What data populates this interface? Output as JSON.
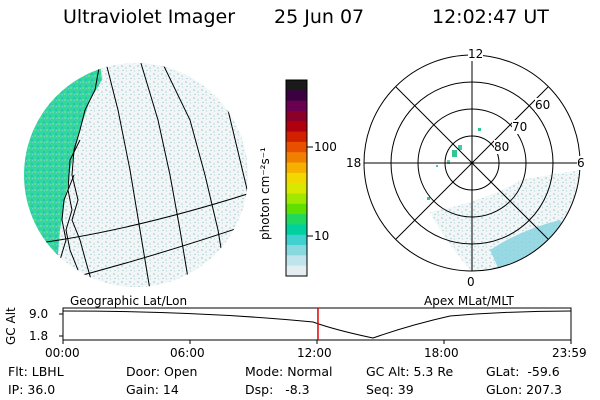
{
  "header": {
    "instrument": "Ultraviolet Imager",
    "date": "25 Jun 07",
    "time": "12:02:47 UT"
  },
  "colorbar": {
    "unit_label": "photon cm⁻²s⁻¹",
    "ticks": [
      "100",
      "10"
    ],
    "colors": [
      "#1a1a1a",
      "#3a0040",
      "#6a0050",
      "#8a0028",
      "#b00010",
      "#d02000",
      "#e85000",
      "#f08000",
      "#f8b000",
      "#f0d800",
      "#d8e800",
      "#a0e800",
      "#60e000",
      "#20d860",
      "#00d0a0",
      "#40d0d0",
      "#88d8e0",
      "#c0e4ec",
      "#e4eef0"
    ]
  },
  "left_panel": {
    "label": "Geographic Lat/Lon"
  },
  "right_panel": {
    "label": "Apex MLat/MLT",
    "mlt_labels": {
      "top": "12",
      "left": "18",
      "right": "6",
      "bottom": "0"
    },
    "lat_labels": [
      "80",
      "70",
      "60"
    ]
  },
  "timeline": {
    "axis_label": "GC Alt",
    "y_ticks": [
      "9.0",
      "1.8"
    ],
    "x_ticks": [
      "00:00",
      "06:00",
      "12:00",
      "18:00",
      "23:59"
    ],
    "current_time_fraction": 0.5019,
    "marker_color": "#e00000"
  },
  "info": {
    "filter": "Flt: LBHL",
    "ip": "IP: 36.0",
    "door": "Door: Open",
    "gain": "Gain: 14",
    "mode": "Mode: Normal",
    "dsp": "Dsp:   -8.3",
    "gc_alt": "GC Alt: 5.3 Re",
    "seq": "Seq: 39",
    "glat": "GLat:  -59.6",
    "glon": "GLon: 207.3"
  }
}
